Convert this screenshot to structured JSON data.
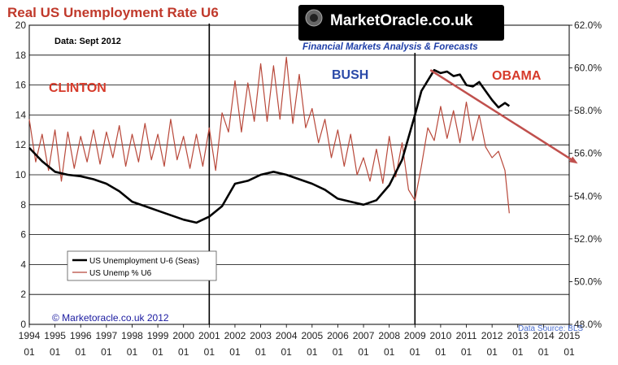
{
  "title": "Real US Unemployment Rate U6",
  "data_note": "Data: Sept 2012",
  "brand": {
    "name": "MarketOracle.co.uk",
    "subtitle": "Financial Markets Analysis & Forecasts",
    "badge_color": "#000000"
  },
  "copyright": "© Marketoracle.co.uk 2012",
  "source": "Data Source: BLS",
  "eras": [
    {
      "label": "CLINTON",
      "color": "#d63a2a"
    },
    {
      "label": "BUSH",
      "color": "#2b4aa8"
    },
    {
      "label": "OBAMA",
      "color": "#d63a2a"
    }
  ],
  "colors": {
    "u6_seas": "#000000",
    "u6_nsa": "#b8483a",
    "trend_arrow": "#c0504d",
    "grid": "#000000",
    "divider": "#000000"
  },
  "legend": [
    {
      "label": "US Unemployment U-6 (Seas)",
      "color": "#000000"
    },
    {
      "label": "US Unemp % U6",
      "color": "#b8483a"
    }
  ],
  "chart_data": {
    "type": "line",
    "title": "Real US Unemployment Rate U6",
    "x_tick_years": [
      "1994",
      "1995",
      "1996",
      "1997",
      "1998",
      "1999",
      "2000",
      "2001",
      "2002",
      "2003",
      "2004",
      "2005",
      "2006",
      "2007",
      "2008",
      "2009",
      "2010",
      "2011",
      "2012",
      "2013",
      "2014",
      "2015"
    ],
    "x_tick_month": "01",
    "xlim": [
      1994.0,
      2015.0
    ],
    "left_axis": {
      "ticks": [
        "0",
        "2",
        "4",
        "6",
        "8",
        "10",
        "12",
        "14",
        "16",
        "18",
        "20"
      ],
      "ylim": [
        0,
        20
      ]
    },
    "right_axis": {
      "ticks": [
        "48.0%",
        "50.0%",
        "52.0%",
        "54.0%",
        "56.0%",
        "58.0%",
        "60.0%",
        "62.0%"
      ],
      "ylim": [
        48.0,
        62.0
      ]
    },
    "divider_years": [
      2001.0,
      2009.0
    ],
    "series": [
      {
        "name": "US Unemployment U-6 (Seas)",
        "axis": "left",
        "x": [
          1994.0,
          1994.5,
          1995.0,
          1995.5,
          1996.0,
          1996.5,
          1997.0,
          1997.5,
          1998.0,
          1998.5,
          1999.0,
          1999.5,
          2000.0,
          2000.5,
          2001.0,
          2001.5,
          2002.0,
          2002.5,
          2003.0,
          2003.5,
          2004.0,
          2004.5,
          2005.0,
          2005.5,
          2006.0,
          2006.5,
          2007.0,
          2007.5,
          2008.0,
          2008.5,
          2009.0,
          2009.25,
          2009.5,
          2009.75,
          2010.0,
          2010.25,
          2010.5,
          2010.75,
          2011.0,
          2011.25,
          2011.5,
          2011.75,
          2012.0,
          2012.25,
          2012.5,
          2012.67
        ],
        "y": [
          11.8,
          10.9,
          10.2,
          10.0,
          9.9,
          9.7,
          9.4,
          8.9,
          8.2,
          7.9,
          7.6,
          7.3,
          7.0,
          6.8,
          7.2,
          7.9,
          9.4,
          9.6,
          10.0,
          10.2,
          10.0,
          9.7,
          9.4,
          9.0,
          8.4,
          8.2,
          8.0,
          8.3,
          9.3,
          11.0,
          14.0,
          15.6,
          16.3,
          17.0,
          16.8,
          16.9,
          16.6,
          16.7,
          16.0,
          15.9,
          16.2,
          15.6,
          15.0,
          14.5,
          14.8,
          14.6
        ]
      },
      {
        "name": "US Unemp % U6",
        "axis": "right",
        "x": [
          1994.0,
          1994.25,
          1994.5,
          1994.75,
          1995.0,
          1995.25,
          1995.5,
          1995.75,
          1996.0,
          1996.25,
          1996.5,
          1996.75,
          1997.0,
          1997.25,
          1997.5,
          1997.75,
          1998.0,
          1998.25,
          1998.5,
          1998.75,
          1999.0,
          1999.25,
          1999.5,
          1999.75,
          2000.0,
          2000.25,
          2000.5,
          2000.75,
          2001.0,
          2001.25,
          2001.5,
          2001.75,
          2002.0,
          2002.25,
          2002.5,
          2002.75,
          2003.0,
          2003.25,
          2003.5,
          2003.75,
          2004.0,
          2004.25,
          2004.5,
          2004.75,
          2005.0,
          2005.25,
          2005.5,
          2005.75,
          2006.0,
          2006.25,
          2006.5,
          2006.75,
          2007.0,
          2007.25,
          2007.5,
          2007.75,
          2008.0,
          2008.25,
          2008.5,
          2008.75,
          2009.0,
          2009.25,
          2009.5,
          2009.75,
          2010.0,
          2010.25,
          2010.5,
          2010.75,
          2011.0,
          2011.25,
          2011.5,
          2011.75,
          2012.0,
          2012.25,
          2012.5,
          2012.67
        ],
        "y": [
          57.6,
          55.6,
          56.9,
          55.2,
          57.1,
          54.7,
          57.0,
          55.3,
          56.8,
          55.6,
          57.1,
          55.5,
          57.0,
          55.8,
          57.3,
          55.4,
          56.9,
          55.6,
          57.4,
          55.7,
          56.9,
          55.4,
          57.6,
          55.7,
          56.8,
          55.3,
          56.9,
          55.4,
          57.2,
          55.2,
          57.9,
          57.0,
          59.4,
          57.0,
          59.3,
          57.5,
          60.2,
          57.5,
          60.1,
          57.6,
          60.5,
          57.4,
          59.7,
          57.2,
          58.1,
          56.5,
          57.6,
          55.8,
          57.1,
          55.4,
          56.9,
          55.0,
          55.8,
          54.7,
          56.2,
          54.6,
          56.8,
          54.9,
          56.5,
          54.3,
          53.8,
          55.4,
          57.2,
          56.6,
          58.2,
          56.7,
          58.0,
          56.5,
          58.4,
          56.6,
          57.8,
          56.3,
          55.8,
          56.1,
          55.2,
          53.2
        ]
      }
    ],
    "trend": {
      "x": [
        2009.6,
        2015.0
      ],
      "y": [
        17.0,
        11.0
      ],
      "axis": "left"
    }
  }
}
